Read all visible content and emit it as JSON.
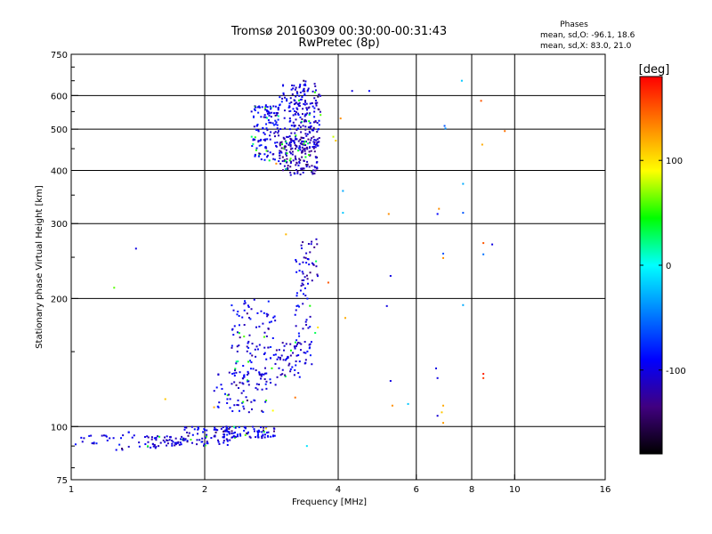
{
  "header": {
    "title": "Tromsø 20160309 00:30:00-00:31:43",
    "subtitle": "RwPretec (8p)",
    "phases_title": "Phases",
    "phases_o": "mean, sd,O:  -96.1, 18.6",
    "phases_x": "mean, sd,X:  83.0, 21.0"
  },
  "chart_data": {
    "type": "scatter",
    "xlabel": "Frequency [MHz]",
    "ylabel": "Stationary phase Virtual Height [km]",
    "x_scale": "log2",
    "y_scale": "log",
    "xlim": [
      1,
      16
    ],
    "ylim": [
      75,
      750
    ],
    "x_ticks": [
      {
        "value": 1,
        "label": "1"
      },
      {
        "value": 2,
        "label": "2"
      },
      {
        "value": 4,
        "label": "4"
      },
      {
        "value": 6,
        "label": "6"
      },
      {
        "value": 8,
        "label": "8"
      },
      {
        "value": 10,
        "label": "10"
      },
      {
        "value": 16,
        "label": "16"
      }
    ],
    "x_gridlines": [
      2,
      4,
      6,
      8,
      10
    ],
    "y_ticks": [
      {
        "value": 75,
        "label": "75"
      },
      {
        "value": 100,
        "label": "100"
      },
      {
        "value": 200,
        "label": "200"
      },
      {
        "value": 300,
        "label": "300"
      },
      {
        "value": 400,
        "label": "400"
      },
      {
        "value": 500,
        "label": "500"
      },
      {
        "value": 600,
        "label": "600"
      },
      {
        "value": 750,
        "label": "750"
      }
    ],
    "y_gridlines": [
      100,
      200,
      300,
      400,
      500,
      600
    ],
    "grid": true,
    "colorbar": {
      "label": "[deg]",
      "range": [
        -180,
        180
      ],
      "ticks": [
        {
          "value": 100,
          "label": "100"
        },
        {
          "value": 0,
          "label": "0"
        },
        {
          "value": -100,
          "label": "-100"
        }
      ],
      "stops": [
        "#ff0000",
        "#ff8000",
        "#ffff00",
        "#00ff00",
        "#00ffff",
        "#0080ff",
        "#0000ff",
        "#400080",
        "#000000"
      ]
    },
    "clusters": [
      {
        "f_range": [
          1.02,
          1.45
        ],
        "h_range": [
          88,
          97
        ],
        "n": 30,
        "phase": -100
      },
      {
        "f_range": [
          1.45,
          1.8
        ],
        "h_range": [
          89,
          95
        ],
        "n": 60,
        "phase": -105
      },
      {
        "f_range": [
          1.8,
          2.3
        ],
        "h_range": [
          90,
          100
        ],
        "n": 70,
        "phase": -100
      },
      {
        "f_range": [
          2.2,
          2.9
        ],
        "h_range": [
          94,
          100
        ],
        "n": 80,
        "phase": -95
      },
      {
        "f_range": [
          2.1,
          2.8
        ],
        "h_range": [
          108,
          135
        ],
        "n": 60,
        "phase": -100
      },
      {
        "f_range": [
          2.3,
          2.9
        ],
        "h_range": [
          125,
          200
        ],
        "n": 120,
        "phase": -100
      },
      {
        "f_range": [
          2.9,
          3.3
        ],
        "h_range": [
          130,
          160
        ],
        "n": 50,
        "phase": -105
      },
      {
        "f_range": [
          3.2,
          3.5
        ],
        "h_range": [
          140,
          250
        ],
        "n": 60,
        "phase": -100
      },
      {
        "f_range": [
          3.3,
          3.6
        ],
        "h_range": [
          220,
          280
        ],
        "n": 25,
        "phase": -115
      },
      {
        "f_range": [
          2.55,
          2.95
        ],
        "h_range": [
          420,
          570
        ],
        "n": 130,
        "phase": -100
      },
      {
        "f_range": [
          2.95,
          3.6
        ],
        "h_range": [
          390,
          480
        ],
        "n": 170,
        "phase": -115
      },
      {
        "f_range": [
          3.1,
          3.65
        ],
        "h_range": [
          450,
          640
        ],
        "n": 160,
        "phase": -105
      },
      {
        "f_range": [
          2.95,
          3.4
        ],
        "h_range": [
          500,
          650
        ],
        "n": 50,
        "phase": -95
      }
    ],
    "points": [
      {
        "f": 1.25,
        "h": 212,
        "phase": 60
      },
      {
        "f": 1.4,
        "h": 262,
        "phase": -100
      },
      {
        "f": 1.63,
        "h": 116,
        "phase": 110
      },
      {
        "f": 2.1,
        "h": 111,
        "phase": 120
      },
      {
        "f": 2.75,
        "h": 99,
        "phase": 100
      },
      {
        "f": 2.85,
        "h": 109,
        "phase": 90
      },
      {
        "f": 2.9,
        "h": 415,
        "phase": 130
      },
      {
        "f": 3.05,
        "h": 283,
        "phase": 115
      },
      {
        "f": 3.2,
        "h": 117,
        "phase": 140
      },
      {
        "f": 3.4,
        "h": 90,
        "phase": -10
      },
      {
        "f": 3.55,
        "h": 166,
        "phase": 30
      },
      {
        "f": 3.6,
        "h": 171,
        "phase": 100
      },
      {
        "f": 3.65,
        "h": 540,
        "phase": 60
      },
      {
        "f": 3.8,
        "h": 218,
        "phase": 150
      },
      {
        "f": 3.95,
        "h": 470,
        "phase": 110
      },
      {
        "f": 3.9,
        "h": 480,
        "phase": 80
      },
      {
        "f": 4.05,
        "h": 530,
        "phase": 130
      },
      {
        "f": 4.1,
        "h": 358,
        "phase": -30
      },
      {
        "f": 4.1,
        "h": 318,
        "phase": -20
      },
      {
        "f": 4.15,
        "h": 180,
        "phase": 120
      },
      {
        "f": 4.3,
        "h": 615,
        "phase": -100
      },
      {
        "f": 4.7,
        "h": 615,
        "phase": -90
      },
      {
        "f": 5.2,
        "h": 316,
        "phase": 130
      },
      {
        "f": 5.15,
        "h": 192,
        "phase": -100
      },
      {
        "f": 5.25,
        "h": 128,
        "phase": -100
      },
      {
        "f": 5.25,
        "h": 226,
        "phase": -100
      },
      {
        "f": 5.3,
        "h": 112,
        "phase": 130
      },
      {
        "f": 5.75,
        "h": 113,
        "phase": -20
      },
      {
        "f": 6.65,
        "h": 137,
        "phase": -100
      },
      {
        "f": 6.7,
        "h": 130,
        "phase": -100
      },
      {
        "f": 6.7,
        "h": 106,
        "phase": -105
      },
      {
        "f": 6.7,
        "h": 316,
        "phase": -90
      },
      {
        "f": 6.75,
        "h": 325,
        "phase": 130
      },
      {
        "f": 6.85,
        "h": 108,
        "phase": 110
      },
      {
        "f": 6.9,
        "h": 102,
        "phase": 125
      },
      {
        "f": 6.9,
        "h": 112,
        "phase": 120
      },
      {
        "f": 6.9,
        "h": 255,
        "phase": -60
      },
      {
        "f": 6.9,
        "h": 249,
        "phase": 130
      },
      {
        "f": 6.95,
        "h": 509,
        "phase": -60
      },
      {
        "f": 6.98,
        "h": 502,
        "phase": -40
      },
      {
        "f": 7.6,
        "h": 650,
        "phase": -20
      },
      {
        "f": 7.65,
        "h": 372,
        "phase": -30
      },
      {
        "f": 7.65,
        "h": 318,
        "phase": -60
      },
      {
        "f": 7.65,
        "h": 193,
        "phase": -30
      },
      {
        "f": 8.4,
        "h": 583,
        "phase": 150
      },
      {
        "f": 8.45,
        "h": 460,
        "phase": 120
      },
      {
        "f": 8.5,
        "h": 270,
        "phase": 150
      },
      {
        "f": 8.5,
        "h": 254,
        "phase": -50
      },
      {
        "f": 8.5,
        "h": 133,
        "phase": 170
      },
      {
        "f": 8.5,
        "h": 130,
        "phase": 160
      },
      {
        "f": 8.9,
        "h": 268,
        "phase": -100
      },
      {
        "f": 9.5,
        "h": 495,
        "phase": 140
      }
    ]
  }
}
